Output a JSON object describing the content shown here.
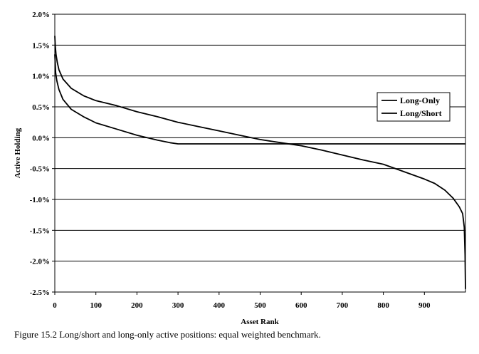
{
  "figure": {
    "caption": "Figure 15.2  Long/short and long-only active positions: equal weighted benchmark."
  },
  "chart_data": {
    "type": "line",
    "title": "",
    "xlabel": "Asset Rank",
    "ylabel": "Active Holding",
    "xlim": [
      0,
      1000
    ],
    "ylim": [
      -2.5,
      2.0
    ],
    "x_ticks": [
      0,
      100,
      200,
      300,
      400,
      500,
      600,
      700,
      800,
      900
    ],
    "x_tick_labels": [
      "0",
      "100",
      "200",
      "300",
      "400",
      "500",
      "600",
      "700",
      "800",
      "900"
    ],
    "y_ticks": [
      2.0,
      1.5,
      1.0,
      0.5,
      0.0,
      -0.5,
      -1.0,
      -1.5,
      -2.0,
      -2.5
    ],
    "y_tick_labels": [
      "2.0%",
      "1.5%",
      "1.0%",
      "0.5%",
      "0.0%",
      "-0.5%",
      "-1.0%",
      "-1.5%",
      "-2.0%",
      "-2.5%"
    ],
    "grid": {
      "horizontal": true,
      "vertical": false
    },
    "legend_position": "right",
    "series": [
      {
        "name": "Long-Only",
        "x": [
          0,
          2,
          5,
          10,
          20,
          40,
          70,
          100,
          150,
          200,
          250,
          280,
          300,
          400,
          500,
          600,
          700,
          800,
          900,
          1000
        ],
        "y": [
          1.35,
          1.05,
          0.92,
          0.78,
          0.62,
          0.46,
          0.34,
          0.24,
          0.14,
          0.04,
          -0.04,
          -0.08,
          -0.1,
          -0.1,
          -0.1,
          -0.1,
          -0.1,
          -0.1,
          -0.1,
          -0.1
        ]
      },
      {
        "name": "Long/Short",
        "x": [
          0,
          1,
          3,
          6,
          10,
          20,
          40,
          70,
          100,
          150,
          200,
          250,
          300,
          350,
          400,
          450,
          500,
          550,
          600,
          650,
          700,
          750,
          800,
          850,
          900,
          925,
          950,
          970,
          985,
          993,
          997,
          999,
          1000
        ],
        "y": [
          1.65,
          1.5,
          1.35,
          1.22,
          1.1,
          0.95,
          0.8,
          0.68,
          0.6,
          0.52,
          0.42,
          0.34,
          0.25,
          0.18,
          0.11,
          0.04,
          -0.03,
          -0.08,
          -0.13,
          -0.2,
          -0.28,
          -0.36,
          -0.43,
          -0.55,
          -0.67,
          -0.74,
          -0.85,
          -0.98,
          -1.12,
          -1.23,
          -1.45,
          -1.9,
          -2.45
        ]
      }
    ]
  }
}
